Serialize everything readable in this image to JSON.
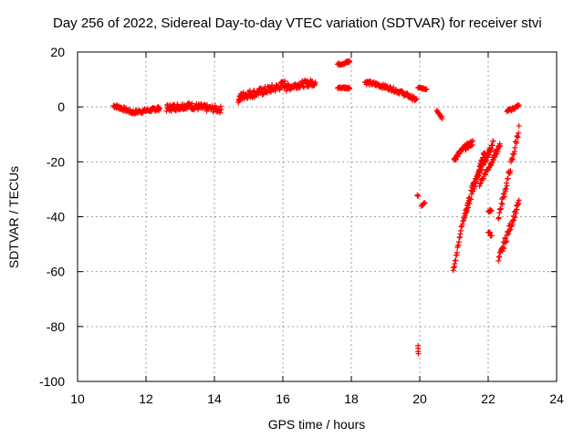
{
  "chart_data": {
    "type": "scatter",
    "title": "Day 256 of 2022, Sidereal Day-to-day VTEC variation (SDTVAR) for receiver stvi",
    "xlabel": "GPS time / hours",
    "ylabel": "SDTVAR / TECUs",
    "xlim": [
      10,
      24
    ],
    "ylim": [
      -100,
      20
    ],
    "x_ticks": [
      10,
      12,
      14,
      16,
      18,
      20,
      22,
      24
    ],
    "y_ticks": [
      -100,
      -80,
      -60,
      -40,
      -20,
      0,
      20
    ],
    "grid": true,
    "marker": "+",
    "color": "#ff0000",
    "segments": [
      {
        "x": [
          11.05,
          11.3,
          11.6,
          11.9,
          12.2,
          12.4
        ],
        "y": [
          0.5,
          -0.5,
          -2.0,
          -1.5,
          -1.0,
          -0.5
        ],
        "spread": 1.5
      },
      {
        "x": [
          12.6,
          12.9,
          13.2,
          13.5,
          13.8,
          14.2
        ],
        "y": [
          -0.5,
          0.0,
          0.5,
          0.0,
          -0.5,
          -1.0
        ],
        "spread": 2.5
      },
      {
        "x": [
          14.7,
          14.9,
          15.2,
          15.5,
          15.8,
          16.1
        ],
        "y": [
          3.0,
          4.5,
          5.0,
          6.0,
          7.0,
          8.5
        ],
        "spread": 3.0
      },
      {
        "x": [
          16.1,
          16.4,
          16.7,
          16.95
        ],
        "y": [
          7.0,
          8.0,
          8.5,
          9.0
        ],
        "spread": 2.5
      },
      {
        "x": [
          17.6,
          17.8,
          17.95
        ],
        "y": [
          15.5,
          16.0,
          16.5
        ],
        "spread": 1.0
      },
      {
        "x": [
          17.6,
          17.8,
          17.95
        ],
        "y": [
          7.0,
          7.0,
          7.0
        ],
        "spread": 0.8
      },
      {
        "x": [
          18.4,
          18.8,
          19.2,
          19.6,
          19.9
        ],
        "y": [
          9.0,
          8.0,
          6.5,
          4.5,
          2.5
        ],
        "spread": 1.5
      },
      {
        "x": [
          19.95,
          20.2
        ],
        "y": [
          7.0,
          6.5
        ],
        "spread": 0.5
      },
      {
        "x": [
          20.5,
          20.65
        ],
        "y": [
          -1.0,
          -4.0
        ],
        "spread": 1.0
      },
      {
        "x": [
          19.93,
          19.95
        ],
        "y": [
          -32.0,
          -32.5
        ],
        "spread": 0.3
      },
      {
        "x": [
          20.05,
          20.15
        ],
        "y": [
          -36.0,
          -35.0
        ],
        "spread": 0.5
      },
      {
        "x": [
          19.95,
          19.95,
          19.96
        ],
        "y": [
          -87.0,
          -88.5,
          -90.0
        ],
        "spread": 0.3
      },
      {
        "x": [
          21.0,
          21.3,
          21.55
        ],
        "y": [
          -19.0,
          -15.0,
          -13.0
        ],
        "spread": 2.0
      },
      {
        "x": [
          20.98,
          21.2,
          21.45
        ],
        "y": [
          -60.0,
          -45.0,
          -33.0
        ],
        "spread": 1.5
      },
      {
        "x": [
          21.3,
          21.7,
          21.9
        ],
        "y": [
          -40.0,
          -25.0,
          -16.0
        ],
        "spread": 2.5
      },
      {
        "x": [
          21.5,
          21.9,
          22.15
        ],
        "y": [
          -30.0,
          -20.0,
          -13.0
        ],
        "spread": 2.0
      },
      {
        "x": [
          21.75,
          22.1,
          22.35
        ],
        "y": [
          -28.0,
          -20.0,
          -14.0
        ],
        "spread": 2.0
      },
      {
        "x": [
          22.0,
          22.1
        ],
        "y": [
          -38.0,
          -37.5
        ],
        "spread": 1.0
      },
      {
        "x": [
          22.0,
          22.1
        ],
        "y": [
          -45.5,
          -47.0
        ],
        "spread": 1.0
      },
      {
        "x": [
          22.3,
          22.6,
          22.9
        ],
        "y": [
          -40.0,
          -25.0,
          -8.0
        ],
        "spread": 3.0
      },
      {
        "x": [
          22.3,
          22.6,
          22.9
        ],
        "y": [
          -56.0,
          -45.0,
          -35.0
        ],
        "spread": 3.0
      },
      {
        "x": [
          22.55,
          22.75,
          22.9
        ],
        "y": [
          -1.5,
          -0.5,
          0.5
        ],
        "spread": 0.8
      }
    ]
  }
}
